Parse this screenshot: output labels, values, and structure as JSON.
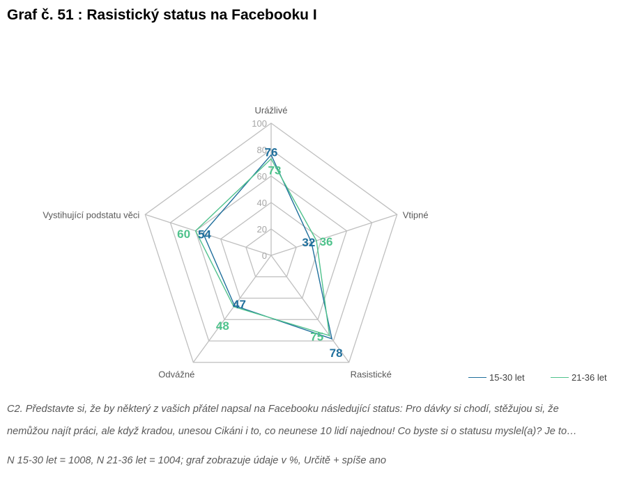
{
  "title": "Graf č. 51 : Rasistický status na Facebooku I",
  "question_line1": "C2. Představte si, že by některý z vašich přátel napsal na Facebooku následující status: Pro dávky si chodí, stěžujou si, že",
  "question_line2": "nemůžou najít práci, ale když kradou, unesou Cikáni i to, co neunese 10 lidí najednou! Co byste si o statusu myslel(a)? Je to…",
  "note": "N 15-30 let = 1008, N 21-36 let = 1004; graf zobrazuje údaje v %, Určitě + spíše ano",
  "colors": {
    "series1": "#1f6f9c",
    "series2": "#4fc28c",
    "grid": "#bfbfbf",
    "axis_text": "#595959"
  },
  "chart_data": {
    "type": "radar",
    "categories": [
      "Urážlivé",
      "Vtipné",
      "Rasistické",
      "Odvážné",
      "Vystihující podstatu věci"
    ],
    "rlim": [
      0,
      100
    ],
    "ticks": [
      0,
      20,
      40,
      60,
      80,
      100
    ],
    "tick_labels": [
      "0",
      "20",
      "40",
      "60",
      "80",
      "100"
    ],
    "series": [
      {
        "name": "15-30 let",
        "values": [
          76,
          32,
          78,
          47,
          54
        ],
        "labels": [
          "76",
          "32",
          "78",
          "47",
          "54"
        ]
      },
      {
        "name": "21-36 let",
        "values": [
          73,
          36,
          75,
          48,
          60
        ],
        "labels": [
          "73",
          "36",
          "75",
          "48",
          "60"
        ]
      }
    ],
    "legend": "bottom-right",
    "grid": true
  }
}
